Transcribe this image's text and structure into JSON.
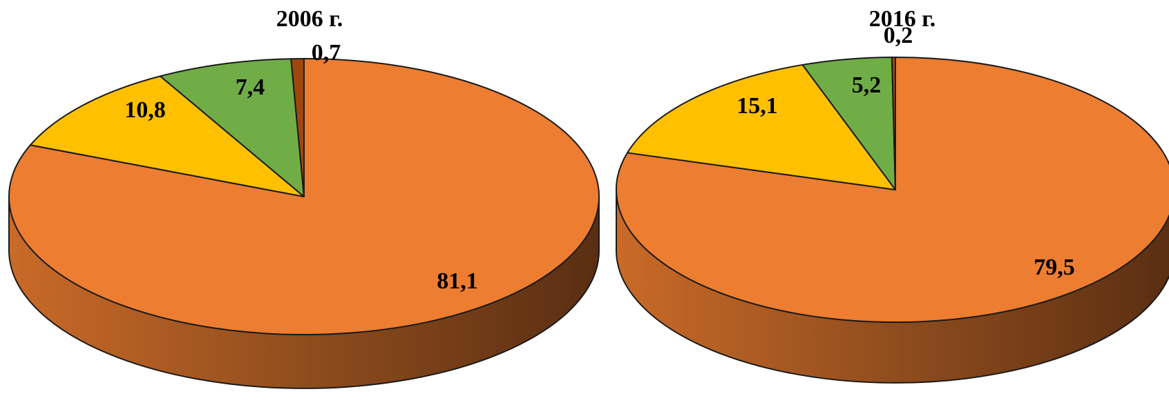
{
  "chart_data": [
    {
      "type": "pie",
      "title": "2006 г.",
      "colors": [
        "#ED7D31",
        "#FFC000",
        "#70AD47",
        "#9E480E"
      ],
      "slices": [
        {
          "value": 81.1,
          "label": "81,1"
        },
        {
          "value": 10.8,
          "label": "10,8"
        },
        {
          "value": 7.4,
          "label": "7,4"
        },
        {
          "value": 0.7,
          "label": "0,7"
        }
      ]
    },
    {
      "type": "pie",
      "title": "2016 г.",
      "colors": [
        "#ED7D31",
        "#FFC000",
        "#70AD47",
        "#9E480E"
      ],
      "slices": [
        {
          "value": 79.5,
          "label": "79,5"
        },
        {
          "value": 15.1,
          "label": "15,1"
        },
        {
          "value": 5.2,
          "label": "5,2"
        },
        {
          "value": 0.2,
          "label": "0,2"
        }
      ]
    }
  ]
}
